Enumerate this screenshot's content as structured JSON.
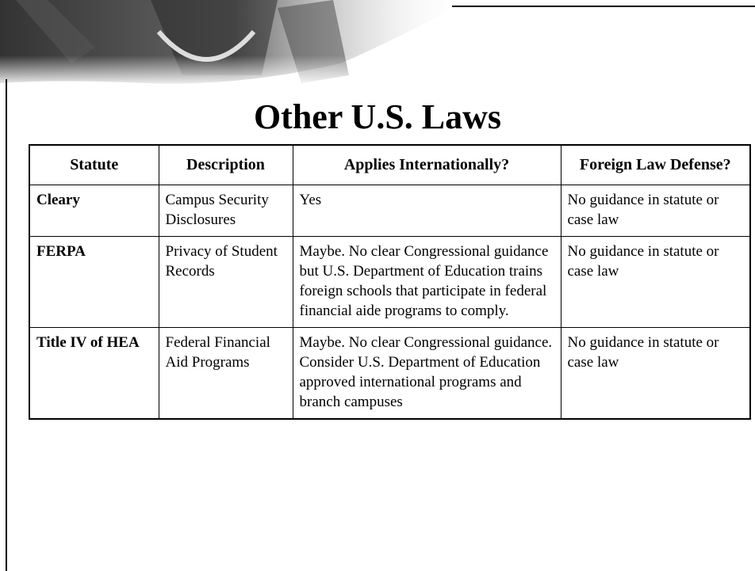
{
  "header": {
    "title": "Other U.S. Laws"
  },
  "table": {
    "columns": [
      "Statute",
      "Description",
      "Applies Internationally?",
      "Foreign Law Defense?"
    ],
    "rows": [
      [
        "Cleary",
        "Campus Security Disclosures",
        "Yes",
        "No guidance in statute or case law"
      ],
      [
        "FERPA",
        "Privacy of Student Records",
        "Maybe. No clear Congressional guidance but U.S. Department of Education trains foreign schools that participate in federal financial aide programs to comply.",
        "No guidance in statute or case law"
      ],
      [
        "Title IV of HEA",
        "Federal Financial Aid Programs",
        "Maybe. No clear Congressional guidance. Consider U.S. Department of Education approved international programs and branch campuses",
        "No guidance in statute or case law"
      ]
    ]
  }
}
